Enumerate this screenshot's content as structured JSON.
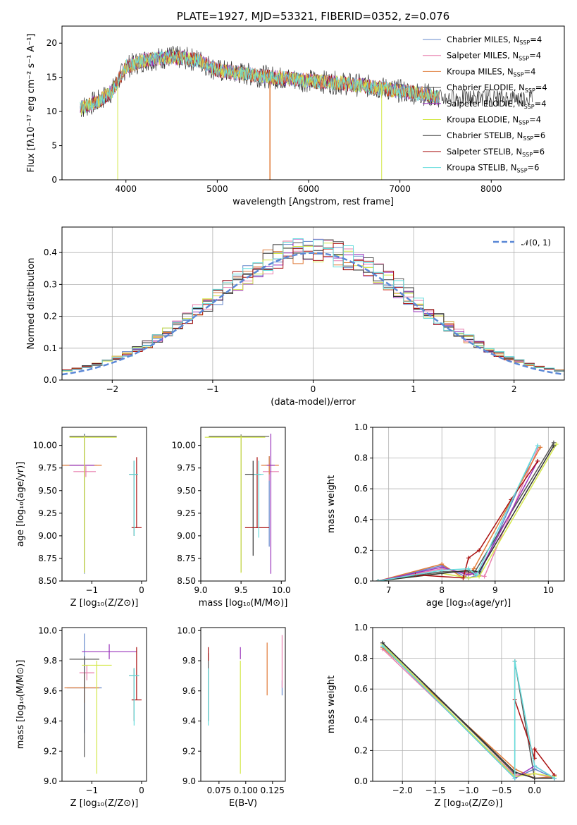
{
  "colors": {
    "series": [
      "#6688cc",
      "#e87fae",
      "#e07b39",
      "#555555",
      "#9933bb",
      "#d4e84a",
      "#333333",
      "#aa1111",
      "#66dddd"
    ],
    "normal_curve": "#5b88d6"
  },
  "chart_data": [
    {
      "id": "spectrum",
      "type": "line",
      "title": "PLATE=1927, MJD=53321, FIBERID=0352, z=0.076",
      "xlabel": "wavelength [Angstrom, rest frame]",
      "ylabel": "Flux [fλ10⁻¹⁷ erg cm⁻² s⁻¹ A⁻¹]",
      "xlim": [
        3300,
        8800
      ],
      "ylim": [
        0,
        22.5
      ],
      "xticks": [
        4000,
        5000,
        6000,
        7000,
        8000
      ],
      "yticks": [
        0,
        5,
        10,
        15,
        20
      ],
      "legend_position": "upper-right",
      "legend": [
        "Chabrier MILES, N_SSP=4",
        "Salpeter MILES, N_SSP=4",
        "Kroupa MILES, N_SSP=4",
        "Chabrier ELODIE, N_SSP=4",
        "Salpeter ELODIE, N_SSP=4",
        "Kroupa ELODIE, N_SSP=4",
        "Chabrier STELIB, N_SSP=6",
        "Salpeter STELIB, N_SSP=6",
        "Kroupa STELIB, N_SSP=6"
      ],
      "continuum": {
        "x": [
          3500,
          3700,
          3850,
          4000,
          4200,
          4500,
          4800,
          5000,
          5300,
          5600,
          6000,
          6300,
          6600,
          7000,
          7300,
          7400
        ],
        "y": [
          10.5,
          11.5,
          13,
          16.5,
          17.5,
          18,
          17.5,
          16,
          15.5,
          15,
          14.5,
          14.2,
          13.8,
          13,
          12.5,
          12
        ]
      }
    },
    {
      "id": "residuals",
      "type": "histogram",
      "xlabel": "(data-model)/error",
      "ylabel": "Normed distribution",
      "xlim": [
        -2.5,
        2.5
      ],
      "ylim": [
        0,
        0.48
      ],
      "xticks": [
        -2,
        -1,
        0,
        1,
        2
      ],
      "yticks": [
        0.0,
        0.1,
        0.2,
        0.3,
        0.4
      ],
      "legend_label": "𝒩(0, 1)",
      "legend_position": "upper-right",
      "grid": true
    },
    {
      "id": "age_vs_Z",
      "type": "errorbar",
      "xlabel": "Z [log₁₀(Z/Z⊙)]",
      "ylabel": "age  [log₁₀(age/yr)]",
      "xlim": [
        -1.6,
        0.1
      ],
      "ylim": [
        8.5,
        10.2
      ],
      "xticks": [
        -1,
        0
      ],
      "yticks": [
        8.5,
        8.75,
        9.0,
        9.25,
        9.5,
        9.75,
        10.0
      ],
      "points": [
        {
          "x": -1.15,
          "xerr": [
            0.4,
            0.25
          ],
          "y": 9.78,
          "yerr": [
            1.2,
            0.35
          ]
        },
        {
          "x": -1.12,
          "xerr": [
            0.25,
            0.2
          ],
          "y": 9.71,
          "yerr": [
            0.06,
            0.06
          ]
        },
        {
          "x": -1.15,
          "xerr": [
            0.45,
            0.35
          ],
          "y": 9.78,
          "yerr": [
            0.1,
            0.1
          ]
        },
        {
          "x": -1.15,
          "xerr": [
            0.3,
            0.65
          ],
          "y": 10.1,
          "yerr": [
            1.5,
            0.02
          ]
        },
        {
          "x": -1.15,
          "xerr": [
            0.3,
            0.2
          ],
          "y": 9.78,
          "yerr": [
            0.12,
            0.05
          ]
        },
        {
          "x": -1.15,
          "xerr": [
            0.3,
            0.65
          ],
          "y": 10.09,
          "yerr": [
            1.5,
            0.02
          ]
        },
        {
          "x": -0.15,
          "xerr": [
            0.1,
            0.08
          ],
          "y": 9.68,
          "yerr": [
            0.68,
            0.15
          ]
        },
        {
          "x": -0.1,
          "xerr": [
            0.1,
            0.1
          ],
          "y": 9.09,
          "yerr": [
            0.0,
            0.78
          ]
        },
        {
          "x": -0.15,
          "xerr": [
            0.1,
            0.08
          ],
          "y": 9.68,
          "yerr": [
            0.68,
            0.15
          ]
        }
      ]
    },
    {
      "id": "age_vs_mass",
      "type": "errorbar",
      "xlabel": "mass [log₁₀(M/M⊙)]",
      "ylabel": "",
      "xlim": [
        9.0,
        10.05
      ],
      "ylim": [
        8.5,
        10.2
      ],
      "xticks": [
        9.0,
        9.5,
        10.0
      ],
      "yticks": [
        8.5,
        8.75,
        9.0,
        9.25,
        9.5,
        9.75,
        10.0
      ],
      "points": [
        {
          "x": 9.85,
          "xerr": [
            0.05,
            0.05
          ],
          "y": 9.78,
          "yerr": [
            0.9,
            0.1
          ]
        },
        {
          "x": 9.85,
          "xerr": [
            0.08,
            0.12
          ],
          "y": 9.71,
          "yerr": [
            0.1,
            0.1
          ]
        },
        {
          "x": 9.85,
          "xerr": [
            0.1,
            0.12
          ],
          "y": 9.78,
          "yerr": [
            0.1,
            0.1
          ]
        },
        {
          "x": 9.5,
          "xerr": [
            0.4,
            0.35
          ],
          "y": 10.1,
          "yerr": [
            1.5,
            0.02
          ]
        },
        {
          "x": 9.87,
          "xerr": [
            0.05,
            0.05
          ],
          "y": 9.78,
          "yerr": [
            1.2,
            0.35
          ]
        },
        {
          "x": 9.5,
          "xerr": [
            0.45,
            0.3
          ],
          "y": 10.09,
          "yerr": [
            1.5,
            0.02
          ]
        },
        {
          "x": 9.65,
          "xerr": [
            0.1,
            0.1
          ],
          "y": 9.68,
          "yerr": [
            0.9,
            0.15
          ]
        },
        {
          "x": 9.7,
          "xerr": [
            0.15,
            0.15
          ],
          "y": 9.09,
          "yerr": [
            0.0,
            0.78
          ]
        },
        {
          "x": 9.72,
          "xerr": [
            0.06,
            0.06
          ],
          "y": 9.68,
          "yerr": [
            0.7,
            0.15
          ]
        }
      ]
    },
    {
      "id": "weight_vs_age",
      "type": "line",
      "xlabel": "age  [log₁₀(age/yr)]",
      "ylabel": "mass weight",
      "xlim": [
        6.7,
        10.3
      ],
      "ylim": [
        0,
        1.0
      ],
      "xticks": [
        7,
        8,
        9,
        10
      ],
      "yticks": [
        0.0,
        0.2,
        0.4,
        0.6,
        0.8,
        1.0
      ],
      "grid": true,
      "series": [
        {
          "x": [
            6.8,
            8.0,
            8.5,
            8.7,
            9.8
          ],
          "y": [
            0.0,
            0.1,
            0.02,
            0.04,
            0.88
          ]
        },
        {
          "x": [
            6.8,
            8.0,
            8.5,
            8.8,
            9.8
          ],
          "y": [
            0.0,
            0.08,
            0.05,
            0.03,
            0.86
          ]
        },
        {
          "x": [
            6.8,
            8.0,
            8.4,
            8.6,
            9.85
          ],
          "y": [
            0.0,
            0.11,
            0.02,
            0.08,
            0.87
          ]
        },
        {
          "x": [
            6.8,
            8.0,
            8.5,
            8.6,
            10.1
          ],
          "y": [
            0.0,
            0.06,
            0.06,
            0.05,
            0.9
          ]
        },
        {
          "x": [
            6.8,
            8.0,
            8.5,
            8.7,
            9.8
          ],
          "y": [
            0.0,
            0.09,
            0.04,
            0.06,
            0.78
          ]
        },
        {
          "x": [
            6.8,
            8.0,
            8.5,
            8.7,
            10.15
          ],
          "y": [
            0.0,
            0.05,
            0.02,
            0.03,
            0.89
          ]
        },
        {
          "x": [
            6.8,
            8.0,
            8.5,
            8.7,
            10.1
          ],
          "y": [
            0.0,
            0.05,
            0.07,
            0.06,
            0.88
          ]
        },
        {
          "x": [
            7.5,
            8.4,
            8.5,
            8.7,
            9.3,
            9.8
          ],
          "y": [
            0.04,
            0.02,
            0.15,
            0.2,
            0.53,
            0.78
          ]
        },
        {
          "x": [
            6.8,
            8.0,
            8.5,
            8.65,
            9.8
          ],
          "y": [
            0.0,
            0.07,
            0.08,
            0.04,
            0.88
          ]
        }
      ]
    },
    {
      "id": "mass_vs_Z",
      "type": "errorbar",
      "xlabel": "Z [log₁₀(Z/Z⊙)]",
      "ylabel": "mass [log₁₀(M/M⊙)]",
      "xlim": [
        -1.6,
        0.1
      ],
      "ylim": [
        9.0,
        10.02
      ],
      "xticks": [
        -1,
        0
      ],
      "yticks": [
        9.0,
        9.2,
        9.4,
        9.6,
        9.8,
        10.0
      ],
      "points": [
        {
          "x": -1.15,
          "xerr": [
            0.35,
            0.35
          ],
          "y": 9.62,
          "yerr": [
            0.3,
            0.36
          ]
        },
        {
          "x": -1.1,
          "xerr": [
            0.15,
            0.15
          ],
          "y": 9.72,
          "yerr": [
            0.05,
            0.05
          ]
        },
        {
          "x": -1.15,
          "xerr": [
            0.4,
            0.3
          ],
          "y": 9.62,
          "yerr": [
            0.1,
            0.1
          ]
        },
        {
          "x": -1.15,
          "xerr": [
            0.3,
            0.3
          ],
          "y": 9.81,
          "yerr": [
            0.65,
            0.02
          ]
        },
        {
          "x": -0.65,
          "xerr": [
            0.55,
            0.55
          ],
          "y": 9.86,
          "yerr": [
            0.05,
            0.05
          ]
        },
        {
          "x": -0.9,
          "xerr": [
            0.3,
            0.3
          ],
          "y": 9.77,
          "yerr": [
            0.72,
            0.03
          ]
        },
        {
          "x": -0.15,
          "xerr": [
            0.1,
            0.1
          ],
          "y": 9.7,
          "yerr": [
            0.3,
            0.05
          ]
        },
        {
          "x": -0.1,
          "xerr": [
            0.1,
            0.1
          ],
          "y": 9.54,
          "yerr": [
            0.0,
            0.35
          ]
        },
        {
          "x": -0.15,
          "xerr": [
            0.1,
            0.1
          ],
          "y": 9.7,
          "yerr": [
            0.33,
            0.05
          ]
        }
      ]
    },
    {
      "id": "mass_vs_ebv",
      "type": "errorbar",
      "xlabel": "E(B-V)",
      "ylabel": "",
      "xlim": [
        0.058,
        0.137
      ],
      "ylim": [
        9.0,
        10.02
      ],
      "xticks": [
        0.075,
        0.1,
        0.125
      ],
      "xtick_labels": [
        "0.075",
        "0.100",
        "0.125"
      ],
      "yticks": [
        9.0,
        9.2,
        9.4,
        9.6,
        9.8,
        10.0
      ],
      "points": [
        {
          "x": 0.134,
          "y": 9.62,
          "yerr": [
            0.05,
            0.05
          ]
        },
        {
          "x": 0.134,
          "y": 9.72,
          "yerr": [
            0.1,
            0.25
          ]
        },
        {
          "x": 0.12,
          "y": 9.62,
          "yerr": [
            0.05,
            0.3
          ]
        },
        {
          "x": 0.065,
          "y": 9.8,
          "yerr": [
            0.4,
            0.05
          ]
        },
        {
          "x": 0.095,
          "y": 9.86,
          "yerr": [
            0.05,
            0.03
          ]
        },
        {
          "x": 0.095,
          "y": 9.77,
          "yerr": [
            0.72,
            0.03
          ]
        },
        {
          "x": 0.065,
          "y": 9.7,
          "yerr": [
            0.3,
            0.05
          ]
        },
        {
          "x": 0.065,
          "y": 9.84,
          "yerr": [
            0.04,
            0.05
          ]
        },
        {
          "x": 0.065,
          "y": 9.7,
          "yerr": [
            0.33,
            0.05
          ]
        }
      ]
    },
    {
      "id": "weight_vs_Z",
      "type": "line",
      "xlabel": "Z [log₁₀(Z/Z⊙)]",
      "ylabel": "mass weight",
      "xlim": [
        -2.45,
        0.45
      ],
      "ylim": [
        0,
        1.0
      ],
      "xticks": [
        -2.0,
        -1.5,
        -1.0,
        -0.5,
        0.0
      ],
      "xtick_labels": [
        "−2.0",
        "−1.5",
        "−1.0",
        "−0.5",
        "0.0"
      ],
      "yticks": [
        0.0,
        0.2,
        0.4,
        0.6,
        0.8,
        1.0
      ],
      "grid": true,
      "series": [
        {
          "x": [
            -2.3,
            -0.3,
            0.0,
            0.3
          ],
          "y": [
            0.88,
            0.02,
            0.08,
            0.02
          ]
        },
        {
          "x": [
            -2.3,
            -0.3,
            0.0,
            0.3
          ],
          "y": [
            0.86,
            0.04,
            0.05,
            0.02
          ]
        },
        {
          "x": [
            -2.3,
            -0.3,
            0.0,
            0.3
          ],
          "y": [
            0.87,
            0.08,
            0.02,
            0.03
          ]
        },
        {
          "x": [
            -2.3,
            -0.3,
            -0.3,
            0.0,
            0.3
          ],
          "y": [
            0.9,
            0.05,
            0.78,
            0.02,
            0.02
          ]
        },
        {
          "x": [
            -2.3,
            -0.3,
            0.0,
            0.3
          ],
          "y": [
            0.88,
            0.02,
            0.1,
            0.02
          ]
        },
        {
          "x": [
            -2.3,
            -0.3,
            0.0,
            0.3
          ],
          "y": [
            0.89,
            0.03,
            0.05,
            0.03
          ]
        },
        {
          "x": [
            -2.3,
            -0.3,
            0.0,
            0.3
          ],
          "y": [
            0.9,
            0.06,
            0.02,
            0.02
          ]
        },
        {
          "x": [
            -0.3,
            -0.3,
            0.0,
            0.0,
            0.3
          ],
          "y": [
            0.78,
            0.53,
            0.15,
            0.21,
            0.04
          ]
        },
        {
          "x": [
            -2.3,
            -0.3,
            -0.3,
            0.0,
            0.3
          ],
          "y": [
            0.88,
            0.02,
            0.78,
            0.1,
            0.02
          ]
        }
      ]
    }
  ]
}
